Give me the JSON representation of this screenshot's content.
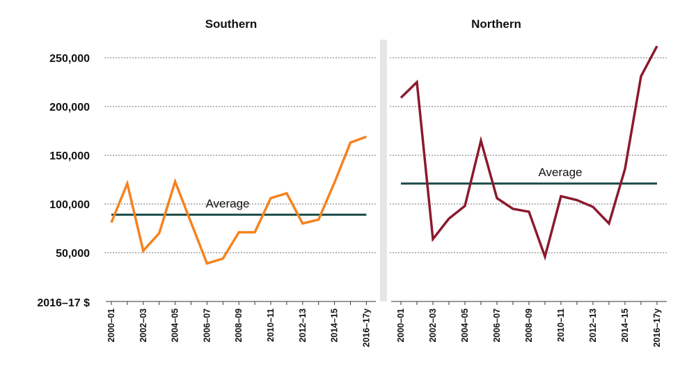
{
  "chart_data": {
    "type": "line",
    "unit_label": "2016–17 $",
    "y_ticks": [
      "50,000",
      "100,000",
      "150,000",
      "200,000",
      "250,000"
    ],
    "y_tick_values": [
      50000,
      100000,
      150000,
      200000,
      250000
    ],
    "ylim": [
      0,
      265000
    ],
    "grid": true,
    "x": [
      "2000–01",
      "2001–02",
      "2002–03",
      "2003–04",
      "2004–05",
      "2005–06",
      "2006–07",
      "2007–08",
      "2008–09",
      "2009–10",
      "2010–11",
      "2011–12",
      "2012–13",
      "2013–14",
      "2014–15",
      "2015–16",
      "2016–17y"
    ],
    "x_tick_labels": [
      "2000–01",
      "2002–03",
      "2004–05",
      "2006–07",
      "2008–09",
      "2010–11",
      "2012–13",
      "2014–15",
      "2016–17y"
    ],
    "panels": [
      {
        "title": "Southern",
        "line_color": "#F5821F",
        "values": [
          81000,
          121000,
          52000,
          70000,
          123000,
          81000,
          39000,
          44000,
          71000,
          71000,
          106000,
          111000,
          80000,
          84000,
          122000,
          163000,
          169000
        ],
        "average_label": "Average",
        "average_value": 89000,
        "average_color": "#1B4D4A"
      },
      {
        "title": "Northern",
        "line_color": "#8B1A2F",
        "values": [
          209000,
          225000,
          64000,
          85000,
          98000,
          165000,
          106000,
          95000,
          92000,
          46000,
          108000,
          104000,
          97000,
          80000,
          136000,
          231000,
          262000
        ],
        "average_label": "Average",
        "average_value": 121000,
        "average_color": "#1B4D4A"
      }
    ]
  }
}
